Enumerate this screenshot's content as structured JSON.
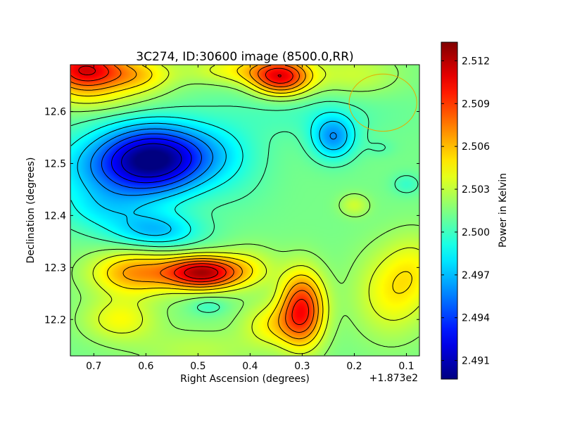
{
  "chart_data": {
    "type": "heatmap",
    "title": "3C274, ID:30600 image (8500.0,RR)",
    "xlabel": "Right Ascension (degrees)",
    "ylabel": "Declination (degrees)",
    "x_offset_label": "+1.873e2",
    "xlim": [
      0.745,
      0.075
    ],
    "ylim": [
      12.13,
      12.69
    ],
    "x_ticks": [
      0.7,
      0.6,
      0.5,
      0.4,
      0.3,
      0.2,
      0.1
    ],
    "x_tick_labels": [
      "0.7",
      "0.6",
      "0.5",
      "0.4",
      "0.3",
      "0.2",
      "0.1"
    ],
    "y_ticks": [
      12.2,
      12.3,
      12.4,
      12.5,
      12.6
    ],
    "y_tick_labels": [
      "12.2",
      "12.3",
      "12.4",
      "12.5",
      "12.6"
    ],
    "colorbar": {
      "label": "Power in Kelvin",
      "range": [
        2.4897,
        2.5133
      ],
      "ticks": [
        2.491,
        2.494,
        2.497,
        2.5,
        2.503,
        2.506,
        2.509,
        2.512
      ],
      "tick_labels": [
        "2.491",
        "2.494",
        "2.497",
        "2.500",
        "2.503",
        "2.506",
        "2.509",
        "2.512"
      ],
      "colormap": "jet"
    },
    "background_level": 2.5013,
    "features": [
      {
        "x": 0.58,
        "y": 12.51,
        "sx": 0.07,
        "sy": 0.045,
        "amp": -0.0095
      },
      {
        "x": 0.66,
        "y": 12.49,
        "sx": 0.09,
        "sy": 0.05,
        "amp": -0.004
      },
      {
        "x": 0.46,
        "y": 12.52,
        "sx": 0.06,
        "sy": 0.04,
        "amp": -0.002
      },
      {
        "x": 0.58,
        "y": 12.37,
        "sx": 0.06,
        "sy": 0.025,
        "amp": -0.004
      },
      {
        "x": 0.68,
        "y": 12.41,
        "sx": 0.06,
        "sy": 0.03,
        "amp": -0.002
      },
      {
        "x": 0.24,
        "y": 12.55,
        "sx": 0.03,
        "sy": 0.03,
        "amp": -0.005
      },
      {
        "x": 0.3,
        "y": 12.6,
        "sx": 0.12,
        "sy": 0.035,
        "amp": -0.0012
      },
      {
        "x": 0.42,
        "y": 12.45,
        "sx": 0.05,
        "sy": 0.04,
        "amp": -0.0005
      },
      {
        "x": 0.1,
        "y": 12.46,
        "sx": 0.02,
        "sy": 0.015,
        "amp": -0.0015
      },
      {
        "x": 0.15,
        "y": 12.53,
        "sx": 0.02,
        "sy": 0.012,
        "amp": -0.0008
      },
      {
        "x": 0.72,
        "y": 12.68,
        "sx": 0.05,
        "sy": 0.03,
        "amp": 0.0095
      },
      {
        "x": 0.62,
        "y": 12.67,
        "sx": 0.05,
        "sy": 0.025,
        "amp": 0.004
      },
      {
        "x": 0.34,
        "y": 12.665,
        "sx": 0.04,
        "sy": 0.025,
        "amp": 0.0085
      },
      {
        "x": 0.42,
        "y": 12.68,
        "sx": 0.07,
        "sy": 0.02,
        "amp": 0.003
      },
      {
        "x": 0.2,
        "y": 12.67,
        "sx": 0.06,
        "sy": 0.03,
        "amp": 0.002
      },
      {
        "x": 0.49,
        "y": 12.29,
        "sx": 0.05,
        "sy": 0.022,
        "amp": 0.0105
      },
      {
        "x": 0.62,
        "y": 12.29,
        "sx": 0.06,
        "sy": 0.03,
        "amp": 0.0055
      },
      {
        "x": 0.4,
        "y": 12.3,
        "sx": 0.04,
        "sy": 0.03,
        "amp": 0.002
      },
      {
        "x": 0.3,
        "y": 12.22,
        "sx": 0.03,
        "sy": 0.05,
        "amp": 0.0085
      },
      {
        "x": 0.36,
        "y": 12.19,
        "sx": 0.04,
        "sy": 0.03,
        "amp": 0.003
      },
      {
        "x": 0.65,
        "y": 12.2,
        "sx": 0.05,
        "sy": 0.03,
        "amp": 0.003
      },
      {
        "x": 0.5,
        "y": 12.14,
        "sx": 0.08,
        "sy": 0.03,
        "amp": 0.0015
      },
      {
        "x": 0.13,
        "y": 12.25,
        "sx": 0.05,
        "sy": 0.06,
        "amp": 0.003
      },
      {
        "x": 0.08,
        "y": 12.3,
        "sx": 0.04,
        "sy": 0.05,
        "amp": 0.002
      },
      {
        "x": 0.2,
        "y": 12.42,
        "sx": 0.02,
        "sy": 0.015,
        "amp": 0.002
      },
      {
        "x": 0.48,
        "y": 12.225,
        "sx": 0.025,
        "sy": 0.012,
        "amp": -0.0015
      },
      {
        "x": 0.7,
        "y": 12.62,
        "sx": 0.08,
        "sy": 0.02,
        "amp": 0.0015
      }
    ],
    "contour_levels": [
      2.4915,
      2.493,
      2.4945,
      2.496,
      2.4975,
      2.499,
      2.5005,
      2.502,
      2.5035,
      2.505,
      2.5065,
      2.508,
      2.5095,
      2.511,
      2.5125
    ],
    "beam_ellipse": {
      "x": 0.145,
      "y": 12.617,
      "rx": 0.065,
      "ry": 0.055
    }
  }
}
